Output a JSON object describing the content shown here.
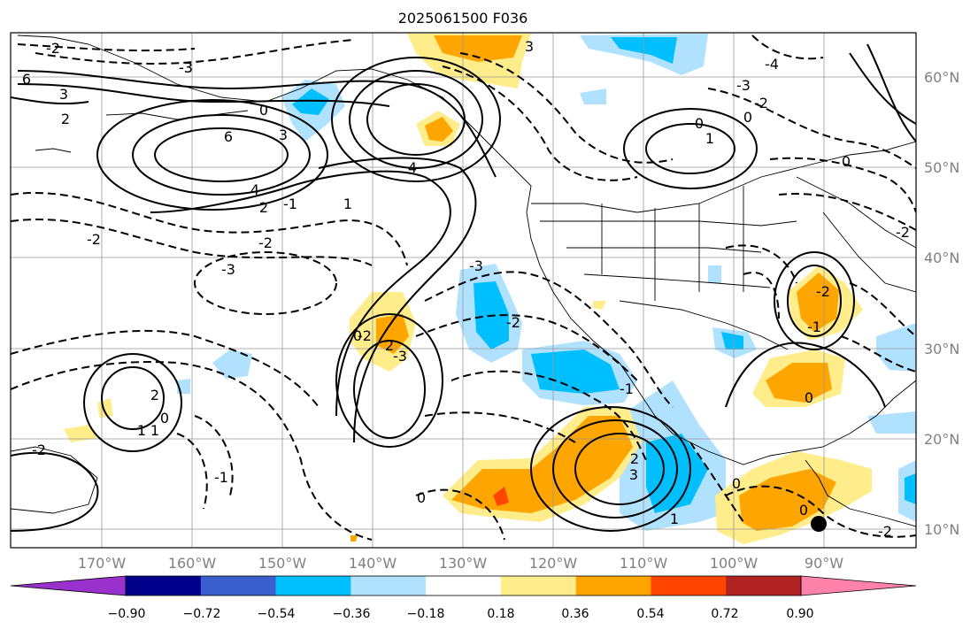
{
  "title": "2025061500 F036",
  "lat_labels": [
    "60°N",
    "50°N",
    "40°N",
    "30°N",
    "20°N",
    "10°N"
  ],
  "lon_labels": [
    "170°W",
    "160°W",
    "150°W",
    "140°W",
    "130°W",
    "120°W",
    "110°W",
    "100°W",
    "90°W"
  ],
  "colorbar": {
    "tick_labels": [
      "−0.90",
      "−0.72",
      "−0.54",
      "−0.36",
      "−0.18",
      "0.18",
      "0.36",
      "0.54",
      "0.72",
      "0.90"
    ],
    "colors": [
      "#9932cc",
      "#00008b",
      "#3a5fcd",
      "#00bfff",
      "#b0e2ff",
      "#ffffff",
      "#ffec8b",
      "#ffa500",
      "#ff4500",
      "#b22222",
      "#ff82ab"
    ]
  },
  "contour_labels": [
    "6",
    "3",
    "2",
    "-3",
    "-2",
    "4",
    "6",
    "3",
    "2",
    "4",
    "1",
    "-1",
    "-2",
    "-3",
    "-2",
    "0",
    "-3",
    "3",
    "0",
    "-2",
    "0",
    "1",
    "-4",
    "-3",
    "-2",
    "0",
    "1",
    "0",
    "-1",
    "2",
    "1",
    "2",
    "-2",
    "-3",
    "0",
    "-2",
    "2",
    "1",
    "0",
    "-1",
    "-2",
    "-3",
    "3",
    "0",
    "-1",
    "0",
    "-2",
    "0",
    "-2"
  ]
}
